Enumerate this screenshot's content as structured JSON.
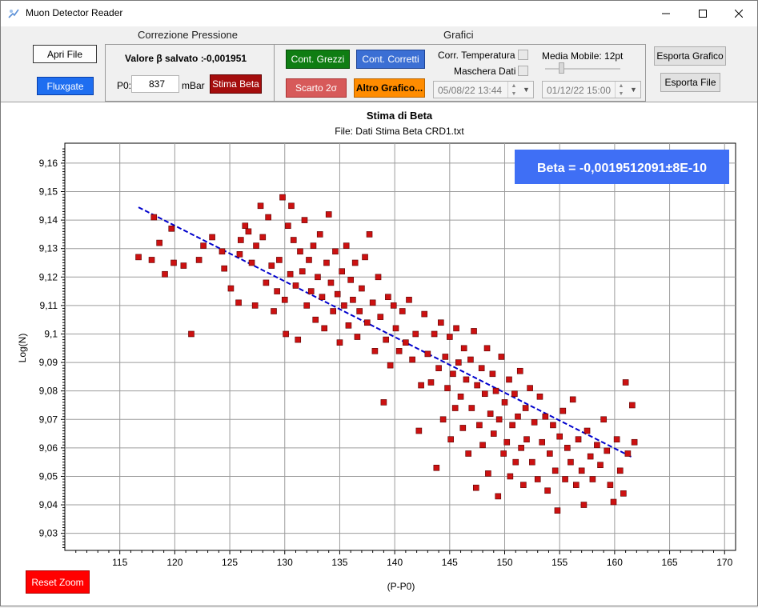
{
  "window": {
    "title": "Muon Detector Reader"
  },
  "buttons": {
    "open_file": "Apri File",
    "fluxgate": "Fluxgate",
    "stima_beta": "Stima Beta",
    "cont_grezzi": "Cont. Grezzi",
    "cont_corretti": "Cont. Corretti",
    "scarto": "Scarto 2σ",
    "altro_grafico": "Altro Grafico...",
    "esporta_grafico": "Esporta Grafico",
    "esporta_file": "Esporta File",
    "reset_zoom": "Reset Zoom"
  },
  "pressure": {
    "group_title": "Correzione Pressione",
    "saved_beta_label": "Valore β salvato :",
    "saved_beta_value": "-0,001951",
    "p0_label": "P0:",
    "p0_value": "837",
    "unit": "mBar"
  },
  "graphs": {
    "group_title": "Grafici",
    "corr_temp_label": "Corr. Temperatura",
    "mask_label": "Maschera Dati",
    "corr_temp_checked": false,
    "mask_checked": false,
    "moving_avg_label": "Media Mobile: 12pt",
    "moving_avg_value": 12,
    "date_start": "05/08/22 13:44",
    "date_end": "01/12/22 15:00"
  },
  "colors": {
    "green": "#0f7d13",
    "blue": "#3b6fd4",
    "red_btn": "#a50d0d",
    "scarto": "#d75a5a",
    "orange": "#ff8c00",
    "fluxgate": "#1e6ef0",
    "reset": "#ff0000",
    "marker": "#cc1111",
    "trend": "#0000cc",
    "beta_box": "#3f6ff5"
  },
  "chart_data": {
    "type": "scatter",
    "title": "Stima di Beta",
    "subtitle": "File: Dati Stima Beta CRD1.txt",
    "xlabel": "(P-P0)",
    "ylabel": "Log(N)",
    "xlim": [
      110,
      171
    ],
    "ylim": [
      9.024,
      9.167
    ],
    "xticks": [
      115,
      120,
      125,
      130,
      135,
      140,
      145,
      150,
      155,
      160,
      165,
      170
    ],
    "xtick_labels": [
      "115",
      "120",
      "125",
      "130",
      "135",
      "140",
      "145",
      "150",
      "155",
      "160",
      "165",
      "170"
    ],
    "yticks": [
      9.03,
      9.04,
      9.05,
      9.06,
      9.07,
      9.08,
      9.09,
      9.1,
      9.11,
      9.12,
      9.13,
      9.14,
      9.15,
      9.16
    ],
    "ytick_labels": [
      "9,03",
      "9,04",
      "9,05",
      "9,06",
      "9,07",
      "9,08",
      "9,09",
      "9,1",
      "9,11",
      "9,12",
      "9,13",
      "9,14",
      "9,15",
      "9,16"
    ],
    "grid": true,
    "annotation": "Beta = -0,0019512091±8E-10",
    "trend_line": {
      "x": [
        116.7,
        161.6
      ],
      "y": [
        9.1445,
        9.0567
      ]
    },
    "series": [
      {
        "marker": "square",
        "points": [
          [
            116.7,
            9.127
          ],
          [
            117.9,
            9.126
          ],
          [
            118.1,
            9.141
          ],
          [
            118.6,
            9.132
          ],
          [
            119.1,
            9.121
          ],
          [
            119.7,
            9.137
          ],
          [
            119.9,
            9.125
          ],
          [
            120.8,
            9.124
          ],
          [
            121.5,
            9.1
          ],
          [
            122.2,
            9.126
          ],
          [
            122.6,
            9.131
          ],
          [
            123.4,
            9.134
          ],
          [
            124.3,
            9.129
          ],
          [
            124.5,
            9.123
          ],
          [
            125.1,
            9.116
          ],
          [
            125.8,
            9.111
          ],
          [
            125.9,
            9.128
          ],
          [
            126.0,
            9.133
          ],
          [
            126.4,
            9.138
          ],
          [
            126.7,
            9.136
          ],
          [
            127.0,
            9.125
          ],
          [
            127.3,
            9.11
          ],
          [
            127.4,
            9.131
          ],
          [
            127.8,
            9.145
          ],
          [
            128.0,
            9.134
          ],
          [
            128.3,
            9.118
          ],
          [
            128.5,
            9.141
          ],
          [
            128.8,
            9.124
          ],
          [
            129.0,
            9.108
          ],
          [
            129.3,
            9.115
          ],
          [
            129.5,
            9.126
          ],
          [
            129.8,
            9.148
          ],
          [
            130.0,
            9.112
          ],
          [
            130.1,
            9.1
          ],
          [
            130.3,
            9.138
          ],
          [
            130.5,
            9.121
          ],
          [
            130.6,
            9.145
          ],
          [
            130.8,
            9.133
          ],
          [
            131.0,
            9.117
          ],
          [
            131.2,
            9.098
          ],
          [
            131.4,
            9.129
          ],
          [
            131.6,
            9.122
          ],
          [
            131.8,
            9.14
          ],
          [
            132.0,
            9.11
          ],
          [
            132.2,
            9.126
          ],
          [
            132.4,
            9.115
          ],
          [
            132.6,
            9.131
          ],
          [
            132.8,
            9.105
          ],
          [
            133.0,
            9.12
          ],
          [
            133.2,
            9.135
          ],
          [
            133.4,
            9.113
          ],
          [
            133.6,
            9.102
          ],
          [
            133.8,
            9.125
          ],
          [
            134.0,
            9.142
          ],
          [
            134.2,
            9.118
          ],
          [
            134.4,
            9.108
          ],
          [
            134.6,
            9.129
          ],
          [
            134.8,
            9.114
          ],
          [
            135.0,
            9.097
          ],
          [
            135.2,
            9.122
          ],
          [
            135.4,
            9.11
          ],
          [
            135.6,
            9.131
          ],
          [
            135.8,
            9.103
          ],
          [
            136.0,
            9.119
          ],
          [
            136.2,
            9.112
          ],
          [
            136.4,
            9.125
          ],
          [
            136.6,
            9.099
          ],
          [
            136.8,
            9.108
          ],
          [
            137.0,
            9.116
          ],
          [
            137.3,
            9.127
          ],
          [
            137.5,
            9.104
          ],
          [
            137.7,
            9.135
          ],
          [
            138.0,
            9.111
          ],
          [
            138.2,
            9.094
          ],
          [
            138.5,
            9.12
          ],
          [
            138.7,
            9.106
          ],
          [
            139.0,
            9.076
          ],
          [
            139.2,
            9.098
          ],
          [
            139.4,
            9.113
          ],
          [
            139.6,
            9.089
          ],
          [
            139.9,
            9.11
          ],
          [
            140.1,
            9.102
          ],
          [
            140.4,
            9.094
          ],
          [
            140.7,
            9.108
          ],
          [
            141.0,
            9.097
          ],
          [
            141.3,
            9.112
          ],
          [
            141.6,
            9.091
          ],
          [
            141.9,
            9.1
          ],
          [
            142.2,
            9.066
          ],
          [
            142.4,
            9.082
          ],
          [
            142.7,
            9.107
          ],
          [
            143.0,
            9.093
          ],
          [
            143.3,
            9.083
          ],
          [
            143.6,
            9.1
          ],
          [
            143.8,
            9.053
          ],
          [
            144.0,
            9.088
          ],
          [
            144.2,
            9.104
          ],
          [
            144.4,
            9.07
          ],
          [
            144.6,
            9.092
          ],
          [
            144.8,
            9.081
          ],
          [
            145.0,
            9.099
          ],
          [
            145.1,
            9.063
          ],
          [
            145.3,
            9.086
          ],
          [
            145.5,
            9.074
          ],
          [
            145.6,
            9.102
          ],
          [
            145.8,
            9.09
          ],
          [
            146.0,
            9.078
          ],
          [
            146.2,
            9.067
          ],
          [
            146.3,
            9.095
          ],
          [
            146.5,
            9.084
          ],
          [
            146.7,
            9.058
          ],
          [
            146.9,
            9.091
          ],
          [
            147.0,
            9.074
          ],
          [
            147.2,
            9.101
          ],
          [
            147.4,
            9.046
          ],
          [
            147.5,
            9.082
          ],
          [
            147.7,
            9.068
          ],
          [
            147.9,
            9.088
          ],
          [
            148.0,
            9.061
          ],
          [
            148.2,
            9.079
          ],
          [
            148.4,
            9.095
          ],
          [
            148.5,
            9.051
          ],
          [
            148.7,
            9.072
          ],
          [
            148.9,
            9.086
          ],
          [
            149.0,
            9.065
          ],
          [
            149.2,
            9.08
          ],
          [
            149.4,
            9.043
          ],
          [
            149.5,
            9.07
          ],
          [
            149.7,
            9.092
          ],
          [
            149.9,
            9.058
          ],
          [
            150.0,
            9.076
          ],
          [
            150.2,
            9.062
          ],
          [
            150.4,
            9.084
          ],
          [
            150.5,
            9.05
          ],
          [
            150.7,
            9.068
          ],
          [
            150.9,
            9.079
          ],
          [
            151.0,
            9.055
          ],
          [
            151.2,
            9.071
          ],
          [
            151.4,
            9.087
          ],
          [
            151.5,
            9.06
          ],
          [
            151.7,
            9.047
          ],
          [
            151.9,
            9.074
          ],
          [
            152.0,
            9.063
          ],
          [
            152.3,
            9.081
          ],
          [
            152.5,
            9.055
          ],
          [
            152.7,
            9.069
          ],
          [
            153.0,
            9.049
          ],
          [
            153.2,
            9.078
          ],
          [
            153.4,
            9.062
          ],
          [
            153.7,
            9.071
          ],
          [
            153.9,
            9.045
          ],
          [
            154.1,
            9.058
          ],
          [
            154.4,
            9.068
          ],
          [
            154.6,
            9.052
          ],
          [
            154.8,
            9.038
          ],
          [
            155.0,
            9.064
          ],
          [
            155.3,
            9.073
          ],
          [
            155.5,
            9.049
          ],
          [
            155.7,
            9.06
          ],
          [
            156.0,
            9.055
          ],
          [
            156.2,
            9.077
          ],
          [
            156.5,
            9.047
          ],
          [
            156.7,
            9.063
          ],
          [
            157.0,
            9.052
          ],
          [
            157.2,
            9.04
          ],
          [
            157.5,
            9.066
          ],
          [
            157.8,
            9.057
          ],
          [
            158.0,
            9.049
          ],
          [
            158.4,
            9.061
          ],
          [
            158.7,
            9.054
          ],
          [
            159.0,
            9.07
          ],
          [
            159.3,
            9.059
          ],
          [
            159.6,
            9.047
          ],
          [
            159.9,
            9.041
          ],
          [
            160.2,
            9.063
          ],
          [
            160.5,
            9.052
          ],
          [
            160.8,
            9.044
          ],
          [
            161.0,
            9.083
          ],
          [
            161.2,
            9.058
          ],
          [
            161.6,
            9.075
          ],
          [
            161.8,
            9.062
          ]
        ]
      }
    ]
  }
}
